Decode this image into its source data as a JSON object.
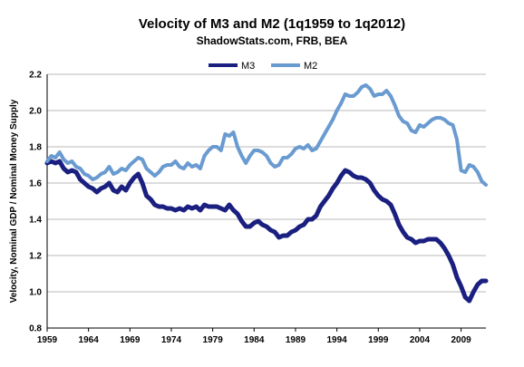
{
  "chart_data": {
    "type": "line",
    "title": "Velocity of M3 and M2 (1q1959 to 1q2012)",
    "subtitle": "ShadowStats.com, FRB, BEA",
    "ylabel": "Velocity, Nominal GDP / Nominal Money Supply",
    "xlabel": "",
    "xlim": [
      1959,
      2012
    ],
    "ylim": [
      0.8,
      2.2
    ],
    "yticks": [
      "0.8",
      "1.0",
      "1.2",
      "1.4",
      "1.6",
      "1.8",
      "2.0",
      "2.2"
    ],
    "xticks": [
      "1959",
      "1964",
      "1969",
      "1974",
      "1979",
      "1984",
      "1989",
      "1994",
      "1999",
      "2004",
      "2009"
    ],
    "grid": "horizontal",
    "legend": "top-center",
    "series": [
      {
        "name": "M3",
        "color": "#1a1f80",
        "points": [
          [
            1959.0,
            1.71
          ],
          [
            1959.5,
            1.72
          ],
          [
            1960.0,
            1.71
          ],
          [
            1960.5,
            1.72
          ],
          [
            1961.0,
            1.68
          ],
          [
            1961.5,
            1.66
          ],
          [
            1962.0,
            1.67
          ],
          [
            1962.5,
            1.66
          ],
          [
            1963.0,
            1.62
          ],
          [
            1963.5,
            1.6
          ],
          [
            1964.0,
            1.58
          ],
          [
            1964.5,
            1.57
          ],
          [
            1965.0,
            1.55
          ],
          [
            1965.5,
            1.57
          ],
          [
            1966.0,
            1.58
          ],
          [
            1966.5,
            1.6
          ],
          [
            1967.0,
            1.56
          ],
          [
            1967.5,
            1.55
          ],
          [
            1968.0,
            1.58
          ],
          [
            1968.5,
            1.56
          ],
          [
            1969.0,
            1.6
          ],
          [
            1969.5,
            1.63
          ],
          [
            1970.0,
            1.65
          ],
          [
            1970.5,
            1.6
          ],
          [
            1971.0,
            1.53
          ],
          [
            1971.5,
            1.51
          ],
          [
            1972.0,
            1.48
          ],
          [
            1972.5,
            1.47
          ],
          [
            1973.0,
            1.47
          ],
          [
            1973.5,
            1.46
          ],
          [
            1974.0,
            1.46
          ],
          [
            1974.5,
            1.45
          ],
          [
            1975.0,
            1.46
          ],
          [
            1975.5,
            1.45
          ],
          [
            1976.0,
            1.47
          ],
          [
            1976.5,
            1.46
          ],
          [
            1977.0,
            1.47
          ],
          [
            1977.5,
            1.45
          ],
          [
            1978.0,
            1.48
          ],
          [
            1978.5,
            1.47
          ],
          [
            1979.0,
            1.47
          ],
          [
            1979.5,
            1.47
          ],
          [
            1980.0,
            1.46
          ],
          [
            1980.5,
            1.45
          ],
          [
            1981.0,
            1.48
          ],
          [
            1981.5,
            1.45
          ],
          [
            1982.0,
            1.43
          ],
          [
            1982.5,
            1.39
          ],
          [
            1983.0,
            1.36
          ],
          [
            1983.5,
            1.36
          ],
          [
            1984.0,
            1.38
          ],
          [
            1984.5,
            1.39
          ],
          [
            1985.0,
            1.37
          ],
          [
            1985.5,
            1.36
          ],
          [
            1986.0,
            1.34
          ],
          [
            1986.5,
            1.33
          ],
          [
            1987.0,
            1.3
          ],
          [
            1987.5,
            1.31
          ],
          [
            1988.0,
            1.31
          ],
          [
            1988.5,
            1.33
          ],
          [
            1989.0,
            1.34
          ],
          [
            1989.5,
            1.36
          ],
          [
            1990.0,
            1.37
          ],
          [
            1990.5,
            1.4
          ],
          [
            1991.0,
            1.4
          ],
          [
            1991.5,
            1.42
          ],
          [
            1992.0,
            1.47
          ],
          [
            1992.5,
            1.5
          ],
          [
            1993.0,
            1.53
          ],
          [
            1993.5,
            1.57
          ],
          [
            1994.0,
            1.6
          ],
          [
            1994.5,
            1.64
          ],
          [
            1995.0,
            1.67
          ],
          [
            1995.5,
            1.66
          ],
          [
            1996.0,
            1.64
          ],
          [
            1996.5,
            1.63
          ],
          [
            1997.0,
            1.63
          ],
          [
            1997.5,
            1.62
          ],
          [
            1998.0,
            1.6
          ],
          [
            1998.5,
            1.56
          ],
          [
            1999.0,
            1.53
          ],
          [
            1999.5,
            1.51
          ],
          [
            2000.0,
            1.5
          ],
          [
            2000.5,
            1.48
          ],
          [
            2001.0,
            1.43
          ],
          [
            2001.5,
            1.37
          ],
          [
            2002.0,
            1.33
          ],
          [
            2002.5,
            1.3
          ],
          [
            2003.0,
            1.29
          ],
          [
            2003.5,
            1.27
          ],
          [
            2004.0,
            1.28
          ],
          [
            2004.5,
            1.28
          ],
          [
            2005.0,
            1.29
          ],
          [
            2005.5,
            1.29
          ],
          [
            2006.0,
            1.29
          ],
          [
            2006.5,
            1.27
          ],
          [
            2007.0,
            1.24
          ],
          [
            2007.5,
            1.2
          ],
          [
            2008.0,
            1.15
          ],
          [
            2008.5,
            1.08
          ],
          [
            2009.0,
            1.03
          ],
          [
            2009.5,
            0.97
          ],
          [
            2010.0,
            0.95
          ],
          [
            2010.5,
            1.0
          ],
          [
            2011.0,
            1.04
          ],
          [
            2011.5,
            1.06
          ],
          [
            2012.0,
            1.06
          ]
        ]
      },
      {
        "name": "M2",
        "color": "#6a9bd0",
        "points": [
          [
            1959.0,
            1.72
          ],
          [
            1959.5,
            1.75
          ],
          [
            1960.0,
            1.74
          ],
          [
            1960.5,
            1.77
          ],
          [
            1961.0,
            1.73
          ],
          [
            1961.5,
            1.71
          ],
          [
            1962.0,
            1.72
          ],
          [
            1962.5,
            1.69
          ],
          [
            1963.0,
            1.68
          ],
          [
            1963.5,
            1.65
          ],
          [
            1964.0,
            1.64
          ],
          [
            1964.5,
            1.62
          ],
          [
            1965.0,
            1.63
          ],
          [
            1965.5,
            1.65
          ],
          [
            1966.0,
            1.66
          ],
          [
            1966.5,
            1.69
          ],
          [
            1967.0,
            1.65
          ],
          [
            1967.5,
            1.66
          ],
          [
            1968.0,
            1.68
          ],
          [
            1968.5,
            1.67
          ],
          [
            1969.0,
            1.7
          ],
          [
            1969.5,
            1.72
          ],
          [
            1970.0,
            1.74
          ],
          [
            1970.5,
            1.73
          ],
          [
            1971.0,
            1.68
          ],
          [
            1971.5,
            1.66
          ],
          [
            1972.0,
            1.64
          ],
          [
            1972.5,
            1.66
          ],
          [
            1973.0,
            1.69
          ],
          [
            1973.5,
            1.7
          ],
          [
            1974.0,
            1.7
          ],
          [
            1974.5,
            1.72
          ],
          [
            1975.0,
            1.69
          ],
          [
            1975.5,
            1.68
          ],
          [
            1976.0,
            1.71
          ],
          [
            1976.5,
            1.69
          ],
          [
            1977.0,
            1.7
          ],
          [
            1977.5,
            1.68
          ],
          [
            1978.0,
            1.75
          ],
          [
            1978.5,
            1.78
          ],
          [
            1979.0,
            1.8
          ],
          [
            1979.5,
            1.8
          ],
          [
            1980.0,
            1.78
          ],
          [
            1980.5,
            1.87
          ],
          [
            1981.0,
            1.86
          ],
          [
            1981.5,
            1.88
          ],
          [
            1982.0,
            1.8
          ],
          [
            1982.5,
            1.75
          ],
          [
            1983.0,
            1.71
          ],
          [
            1983.5,
            1.75
          ],
          [
            1984.0,
            1.78
          ],
          [
            1984.5,
            1.78
          ],
          [
            1985.0,
            1.77
          ],
          [
            1985.5,
            1.75
          ],
          [
            1986.0,
            1.71
          ],
          [
            1986.5,
            1.69
          ],
          [
            1987.0,
            1.7
          ],
          [
            1987.5,
            1.74
          ],
          [
            1988.0,
            1.74
          ],
          [
            1988.5,
            1.76
          ],
          [
            1989.0,
            1.79
          ],
          [
            1989.5,
            1.8
          ],
          [
            1990.0,
            1.79
          ],
          [
            1990.5,
            1.81
          ],
          [
            1991.0,
            1.78
          ],
          [
            1991.5,
            1.79
          ],
          [
            1992.0,
            1.83
          ],
          [
            1992.5,
            1.87
          ],
          [
            1993.0,
            1.91
          ],
          [
            1993.5,
            1.95
          ],
          [
            1994.0,
            2.0
          ],
          [
            1994.5,
            2.04
          ],
          [
            1995.0,
            2.09
          ],
          [
            1995.5,
            2.08
          ],
          [
            1996.0,
            2.08
          ],
          [
            1996.5,
            2.1
          ],
          [
            1997.0,
            2.13
          ],
          [
            1997.5,
            2.14
          ],
          [
            1998.0,
            2.12
          ],
          [
            1998.5,
            2.08
          ],
          [
            1999.0,
            2.09
          ],
          [
            1999.5,
            2.09
          ],
          [
            2000.0,
            2.11
          ],
          [
            2000.5,
            2.08
          ],
          [
            2001.0,
            2.03
          ],
          [
            2001.5,
            1.97
          ],
          [
            2002.0,
            1.94
          ],
          [
            2002.5,
            1.93
          ],
          [
            2003.0,
            1.89
          ],
          [
            2003.5,
            1.88
          ],
          [
            2004.0,
            1.92
          ],
          [
            2004.5,
            1.91
          ],
          [
            2005.0,
            1.93
          ],
          [
            2005.5,
            1.95
          ],
          [
            2006.0,
            1.96
          ],
          [
            2006.5,
            1.96
          ],
          [
            2007.0,
            1.95
          ],
          [
            2007.5,
            1.93
          ],
          [
            2008.0,
            1.92
          ],
          [
            2008.5,
            1.84
          ],
          [
            2009.0,
            1.67
          ],
          [
            2009.5,
            1.66
          ],
          [
            2010.0,
            1.7
          ],
          [
            2010.5,
            1.69
          ],
          [
            2011.0,
            1.66
          ],
          [
            2011.5,
            1.61
          ],
          [
            2012.0,
            1.59
          ]
        ]
      }
    ]
  }
}
